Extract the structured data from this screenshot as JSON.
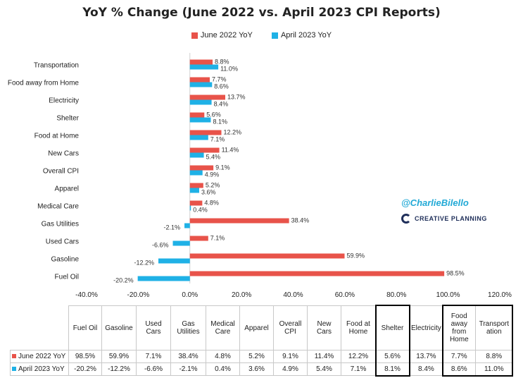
{
  "chart_data": {
    "type": "bar",
    "orientation": "horizontal",
    "title": "YoY % Change (June 2022 vs. April 2023 CPI Reports)",
    "categories": [
      "Fuel Oil",
      "Gasoline",
      "Used Cars",
      "Gas Utilities",
      "Medical Care",
      "Apparel",
      "Overall CPI",
      "New Cars",
      "Food at Home",
      "Shelter",
      "Electricity",
      "Food away from Home",
      "Transportation"
    ],
    "table_headers": [
      "Fuel Oil",
      "Gasoline",
      "Used Cars",
      "Gas Utilities",
      "Medical Care",
      "Apparel",
      "Overall CPI",
      "New Cars",
      "Food at Home",
      "Shelter",
      "Electricity",
      "Food away from Home",
      "Transport ation"
    ],
    "series": [
      {
        "name": "June 2022 YoY",
        "color": "#e8534a",
        "values": [
          98.5,
          59.9,
          7.1,
          38.4,
          4.8,
          5.2,
          9.1,
          11.4,
          12.2,
          5.6,
          13.7,
          7.7,
          8.8
        ]
      },
      {
        "name": "April 2023 YoY",
        "color": "#1fb1e6",
        "values": [
          -20.2,
          -12.2,
          -6.6,
          -2.1,
          0.4,
          3.6,
          4.9,
          5.4,
          7.1,
          8.1,
          8.4,
          8.6,
          11.0
        ]
      }
    ],
    "xlim": [
      -40,
      120
    ],
    "xticks": [
      -40,
      -20,
      0,
      20,
      40,
      60,
      80,
      100,
      120
    ],
    "tick_format": "percent_1dp",
    "label_format": "percent_1dp",
    "grid": false,
    "legend": "top-center",
    "highlighted_columns": [
      "Shelter",
      "Food away from Home",
      "Transport ation"
    ]
  },
  "watermark": {
    "handle": "@CharlieBilello",
    "brand": "CREATIVE PLANNING"
  }
}
